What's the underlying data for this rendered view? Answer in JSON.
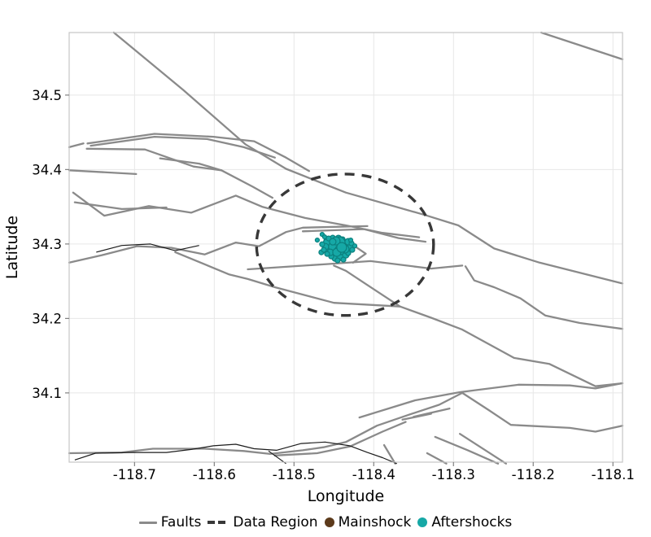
{
  "axes": {
    "x": {
      "label": "Longitude",
      "ticks": [
        -118.7,
        -118.6,
        -118.5,
        -118.4,
        -118.3,
        -118.2,
        -118.1
      ]
    },
    "y": {
      "label": "Latitude",
      "ticks": [
        34.1,
        34.2,
        34.3,
        34.4,
        34.5
      ]
    }
  },
  "legend": {
    "items": [
      {
        "label": "Faults",
        "marker": "line"
      },
      {
        "label": "Data Region",
        "marker": "dashes"
      },
      {
        "label": "Mainshock",
        "marker": "dot"
      },
      {
        "label": "Aftershocks",
        "marker": "dot"
      }
    ]
  },
  "colors": {
    "fault": "#8a8a8a",
    "minor_line": "#1c1c1c",
    "data_region": "#383838",
    "mainshock": "#5C3A1B",
    "aftershock_fill": "#16a8a6",
    "aftershock_edge": "#0b807e",
    "grid": "#e7e7e7",
    "frame": "#c6c6c6",
    "tick": "#808080"
  },
  "chart_data": {
    "type": "scatter",
    "title": "",
    "xlabel": "Longitude",
    "ylabel": "Latitude",
    "xlim": [
      -118.782,
      -118.088
    ],
    "ylim": [
      34.007,
      34.584
    ],
    "xticks": [
      -118.7,
      -118.6,
      -118.5,
      -118.4,
      -118.3,
      -118.2,
      -118.1
    ],
    "yticks": [
      34.1,
      34.2,
      34.3,
      34.4,
      34.5
    ],
    "grid": true,
    "legend_position": "bottom",
    "faults": [
      [
        [
          -118.726,
          34.584
        ],
        [
          -118.639,
          34.507
        ],
        [
          -118.561,
          34.434
        ],
        [
          -118.51,
          34.401
        ],
        [
          -118.435,
          34.369
        ],
        [
          -118.336,
          34.339
        ],
        [
          -118.294,
          34.325
        ],
        [
          -118.249,
          34.294
        ],
        [
          -118.192,
          34.275
        ],
        [
          -118.088,
          34.247
        ]
      ],
      [
        [
          -118.19,
          34.584
        ],
        [
          -118.088,
          34.548
        ]
      ],
      [
        [
          -118.759,
          34.435
        ],
        [
          -118.675,
          34.448
        ],
        [
          -118.601,
          34.444
        ],
        [
          -118.55,
          34.438
        ],
        [
          -118.51,
          34.416
        ],
        [
          -118.481,
          34.398
        ]
      ],
      [
        [
          -118.755,
          34.432
        ],
        [
          -118.675,
          34.444
        ],
        [
          -118.609,
          34.441
        ],
        [
          -118.563,
          34.43
        ],
        [
          -118.524,
          34.416
        ]
      ],
      [
        [
          -118.782,
          34.43
        ],
        [
          -118.764,
          34.435
        ]
      ],
      [
        [
          -118.76,
          34.428
        ],
        [
          -118.687,
          34.427
        ],
        [
          -118.626,
          34.404
        ],
        [
          -118.591,
          34.399
        ]
      ],
      [
        [
          -118.668,
          34.415
        ],
        [
          -118.619,
          34.408
        ],
        [
          -118.591,
          34.399
        ],
        [
          -118.552,
          34.377
        ],
        [
          -118.527,
          34.362
        ]
      ],
      [
        [
          -118.782,
          34.399
        ],
        [
          -118.698,
          34.394
        ]
      ],
      [
        [
          -118.777,
          34.369
        ],
        [
          -118.738,
          34.338
        ],
        [
          -118.682,
          34.351
        ],
        [
          -118.629,
          34.342
        ],
        [
          -118.573,
          34.365
        ],
        [
          -118.54,
          34.35
        ],
        [
          -118.486,
          34.335
        ],
        [
          -118.435,
          34.325
        ],
        [
          -118.389,
          34.315
        ],
        [
          -118.343,
          34.309
        ]
      ],
      [
        [
          -118.775,
          34.356
        ],
        [
          -118.716,
          34.347
        ],
        [
          -118.66,
          34.349
        ]
      ],
      [
        [
          -118.782,
          34.275
        ],
        [
          -118.741,
          34.285
        ],
        [
          -118.697,
          34.297
        ],
        [
          -118.654,
          34.295
        ],
        [
          -118.612,
          34.286
        ],
        [
          -118.573,
          34.302
        ],
        [
          -118.544,
          34.297
        ],
        [
          -118.51,
          34.316
        ],
        [
          -118.489,
          34.322
        ],
        [
          -118.408,
          34.324
        ]
      ],
      [
        [
          -118.489,
          34.317
        ],
        [
          -118.412,
          34.32
        ],
        [
          -118.369,
          34.308
        ],
        [
          -118.335,
          34.303
        ]
      ],
      [
        [
          -118.558,
          34.266
        ],
        [
          -118.459,
          34.273
        ],
        [
          -118.404,
          34.277
        ],
        [
          -118.328,
          34.267
        ],
        [
          -118.289,
          34.271
        ]
      ],
      [
        [
          -118.285,
          34.27
        ],
        [
          -118.274,
          34.251
        ],
        [
          -118.249,
          34.242
        ],
        [
          -118.216,
          34.227
        ],
        [
          -118.185,
          34.204
        ],
        [
          -118.142,
          34.194
        ],
        [
          -118.088,
          34.186
        ]
      ],
      [
        [
          -118.649,
          34.289
        ],
        [
          -118.581,
          34.259
        ],
        [
          -118.558,
          34.253
        ],
        [
          -118.524,
          34.242
        ],
        [
          -118.45,
          34.221
        ],
        [
          -118.367,
          34.216
        ],
        [
          -118.328,
          34.201
        ],
        [
          -118.289,
          34.185
        ],
        [
          -118.224,
          34.147
        ],
        [
          -118.18,
          34.139
        ],
        [
          -118.122,
          34.109
        ],
        [
          -118.088,
          34.113
        ]
      ],
      [
        [
          -118.45,
          34.271
        ],
        [
          -118.435,
          34.264
        ],
        [
          -118.401,
          34.24
        ],
        [
          -118.367,
          34.216
        ]
      ],
      [
        [
          -118.428,
          34.3
        ],
        [
          -118.41,
          34.287
        ],
        [
          -118.426,
          34.275
        ]
      ],
      [
        [
          -118.782,
          34.019
        ],
        [
          -118.716,
          34.02
        ],
        [
          -118.677,
          34.025
        ],
        [
          -118.612,
          34.025
        ],
        [
          -118.563,
          34.022
        ],
        [
          -118.53,
          34.018
        ],
        [
          -118.489,
          34.023
        ],
        [
          -118.463,
          34.027
        ],
        [
          -118.435,
          34.034
        ],
        [
          -118.396,
          34.056
        ],
        [
          -118.358,
          34.07
        ],
        [
          -118.318,
          34.084
        ],
        [
          -118.289,
          34.1
        ]
      ],
      [
        [
          -118.524,
          34.016
        ],
        [
          -118.471,
          34.019
        ],
        [
          -118.43,
          34.028
        ],
        [
          -118.389,
          34.048
        ],
        [
          -118.36,
          34.061
        ]
      ],
      [
        [
          -118.418,
          34.067
        ],
        [
          -118.348,
          34.09
        ],
        [
          -118.292,
          34.101
        ],
        [
          -118.218,
          34.111
        ],
        [
          -118.154,
          34.11
        ],
        [
          -118.122,
          34.106
        ],
        [
          -118.088,
          34.113
        ]
      ],
      [
        [
          -118.289,
          34.1
        ],
        [
          -118.256,
          34.077
        ],
        [
          -118.228,
          34.057
        ],
        [
          -118.154,
          34.053
        ],
        [
          -118.122,
          34.048
        ],
        [
          -118.088,
          34.056
        ]
      ],
      [
        [
          -118.35,
          34.068
        ],
        [
          -118.305,
          34.079
        ]
      ],
      [
        [
          -118.364,
          34.064
        ],
        [
          -118.328,
          34.072
        ]
      ],
      [
        [
          -118.387,
          34.03
        ],
        [
          -118.373,
          34.005
        ]
      ],
      [
        [
          -118.333,
          34.019
        ],
        [
          -118.309,
          34.005
        ]
      ],
      [
        [
          -118.323,
          34.041
        ],
        [
          -118.282,
          34.023
        ],
        [
          -118.244,
          34.005
        ]
      ],
      [
        [
          -118.292,
          34.045
        ],
        [
          -118.234,
          34.005
        ]
      ]
    ],
    "minor_lines": [
      [
        [
          -118.775,
          34.01
        ],
        [
          -118.749,
          34.019
        ],
        [
          -118.703,
          34.02
        ],
        [
          -118.66,
          34.02
        ],
        [
          -118.629,
          34.024
        ],
        [
          -118.601,
          34.029
        ],
        [
          -118.573,
          34.031
        ],
        [
          -118.55,
          34.025
        ],
        [
          -118.522,
          34.023
        ],
        [
          -118.491,
          34.032
        ],
        [
          -118.461,
          34.034
        ],
        [
          -118.43,
          34.029
        ],
        [
          -118.408,
          34.02
        ],
        [
          -118.389,
          34.013
        ],
        [
          -118.371,
          34.005
        ]
      ],
      [
        [
          -118.532,
          34.022
        ],
        [
          -118.51,
          34.005
        ]
      ],
      [
        [
          -118.748,
          34.289
        ],
        [
          -118.716,
          34.298
        ],
        [
          -118.68,
          34.3
        ],
        [
          -118.649,
          34.291
        ],
        [
          -118.619,
          34.298
        ]
      ]
    ],
    "data_region": {
      "center": [
        -118.436,
        34.299
      ],
      "radius_lon": 0.111,
      "radius_lat": 0.095
    },
    "mainshock": {
      "point": [
        -118.4453,
        34.2997
      ],
      "size": 6
    },
    "aftershocks": [
      [
        -118.4647,
        34.3129,
        2.5
      ],
      [
        -118.4708,
        34.3052,
        2.5
      ],
      [
        -118.4657,
        34.2888,
        3
      ],
      [
        -118.4585,
        34.3041,
        4
      ],
      [
        -118.4555,
        34.2997,
        8
      ],
      [
        -118.4483,
        34.3008,
        5
      ],
      [
        -118.4524,
        34.2932,
        6
      ],
      [
        -118.4453,
        34.2954,
        8
      ],
      [
        -118.4402,
        34.2997,
        6
      ],
      [
        -118.4361,
        34.2964,
        7
      ],
      [
        -118.4422,
        34.2888,
        5
      ],
      [
        -118.4504,
        34.2866,
        6
      ],
      [
        -118.4576,
        34.291,
        5
      ],
      [
        -118.4483,
        34.2811,
        4
      ],
      [
        -118.4412,
        34.2833,
        5
      ],
      [
        -118.434,
        34.2899,
        5
      ],
      [
        -118.43,
        34.2954,
        6
      ],
      [
        -118.432,
        34.303,
        4
      ],
      [
        -118.4443,
        34.3074,
        4
      ],
      [
        -118.4514,
        34.3085,
        3
      ],
      [
        -118.4391,
        34.3063,
        3
      ],
      [
        -118.4279,
        34.3008,
        3
      ],
      [
        -118.4351,
        34.2855,
        4
      ],
      [
        -118.4534,
        34.2833,
        3
      ],
      [
        -118.4606,
        34.2964,
        4
      ],
      [
        -118.4626,
        34.2921,
        3
      ],
      [
        -118.4269,
        34.2921,
        3
      ],
      [
        -118.4453,
        34.2779,
        3
      ],
      [
        -118.4381,
        34.279,
        3
      ],
      [
        -118.4565,
        34.3074,
        3
      ],
      [
        -118.4432,
        34.3019,
        7
      ],
      [
        -118.4494,
        34.2964,
        7
      ],
      [
        -118.4545,
        34.2888,
        4
      ],
      [
        -118.432,
        34.2877,
        3
      ],
      [
        -118.4647,
        34.2997,
        3
      ],
      [
        -118.4238,
        34.2975,
        2.5
      ],
      [
        -118.4473,
        34.3041,
        5
      ],
      [
        -118.4361,
        34.2932,
        5
      ],
      [
        -118.4422,
        34.2921,
        6
      ],
      [
        -118.4585,
        34.2866,
        3
      ],
      [
        -118.4289,
        34.3052,
        2.5
      ],
      [
        -118.4514,
        34.303,
        4
      ],
      [
        -118.4463,
        34.2888,
        5
      ],
      [
        -118.4402,
        34.2954,
        6
      ],
      [
        -118.4616,
        34.3096,
        2.5
      ]
    ]
  }
}
